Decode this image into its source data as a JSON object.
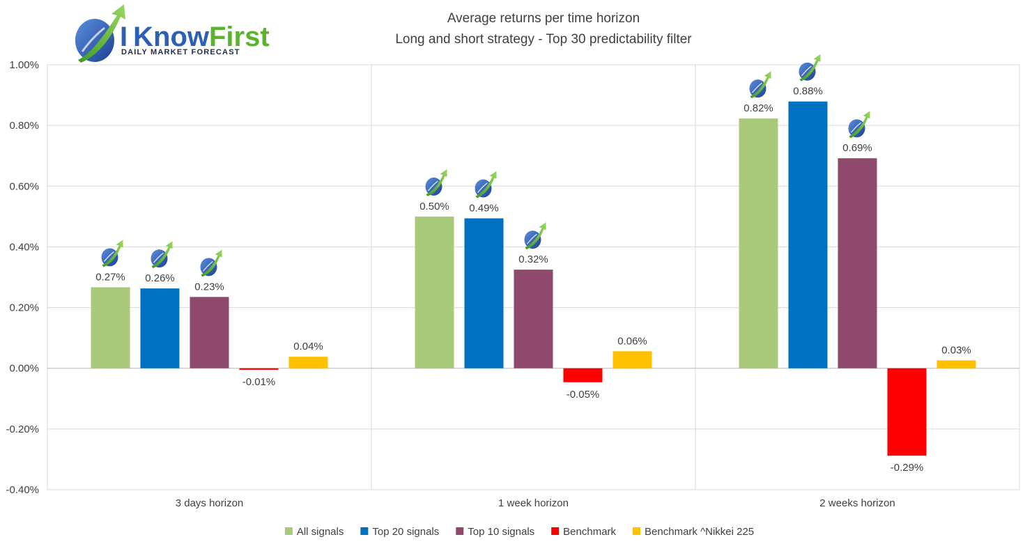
{
  "logo": {
    "text_i": "I",
    "text_know": "Know",
    "text_first": "First",
    "tagline": "Daily Market Forecast",
    "colors": {
      "blue": "#2c5fb5",
      "green": "#5ab52c",
      "dark": "#1c2c46"
    }
  },
  "chart_data": {
    "type": "bar",
    "title": [
      "Average returns per time horizon",
      "Long and short strategy - Top 30 predictability filter"
    ],
    "categories": [
      "3 days horizon",
      "1 week horizon",
      "2 weeks horizon"
    ],
    "ylim": [
      -0.4,
      1.0
    ],
    "yticks": [
      1.0,
      0.8,
      0.6,
      0.4,
      0.2,
      0.0,
      -0.2,
      -0.4
    ],
    "ytick_labels": [
      "1.00%",
      "0.80%",
      "0.60%",
      "0.40%",
      "0.20%",
      "0.00%",
      "-0.20%",
      "-0.40%"
    ],
    "grid": true,
    "legend_position": "bottom",
    "value_labels": [
      [
        "0.27%",
        "0.26%",
        "0.23%",
        "-0.01%",
        "0.04%"
      ],
      [
        "0.50%",
        "0.49%",
        "0.32%",
        "-0.05%",
        "0.06%"
      ],
      [
        "0.82%",
        "0.88%",
        "0.69%",
        "-0.29%",
        "0.03%"
      ]
    ],
    "series": [
      {
        "name": "All signals",
        "color": "#a9c97b",
        "values": [
          0.267,
          0.5,
          0.823
        ],
        "badge": true
      },
      {
        "name": "Top 20 signals",
        "color": "#0070c0",
        "values": [
          0.263,
          0.494,
          0.879
        ],
        "badge": true
      },
      {
        "name": "Top 10 signals",
        "color": "#8e4a6d",
        "values": [
          0.235,
          0.325,
          0.692
        ],
        "badge": true
      },
      {
        "name": "Benchmark",
        "color": "#ff0000",
        "values": [
          -0.005,
          -0.046,
          -0.288
        ],
        "badge": false
      },
      {
        "name": "Benchmark ^Nikkei 225",
        "color": "#ffc000",
        "values": [
          0.038,
          0.056,
          0.026
        ],
        "badge": false
      }
    ]
  }
}
